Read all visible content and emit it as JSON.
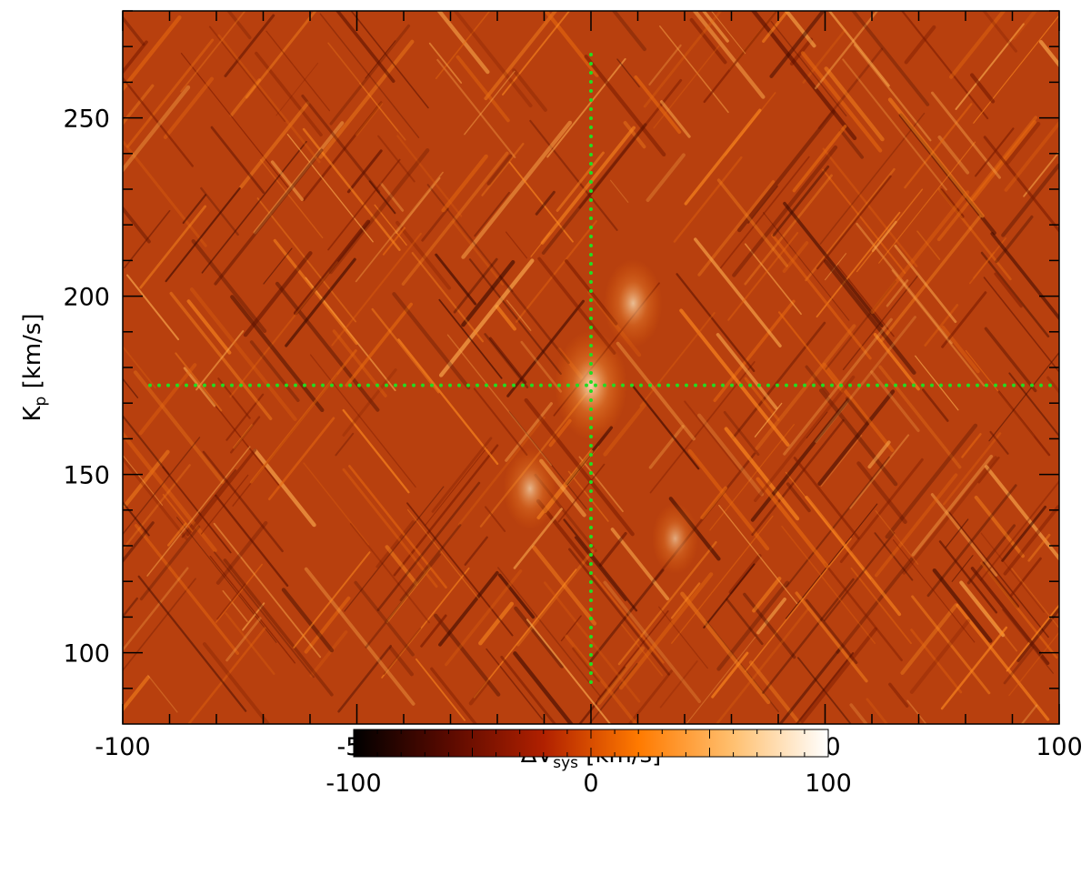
{
  "chart_data": {
    "type": "heatmap",
    "title": "",
    "xlabel": {
      "main": "ΔV",
      "sub": "sys",
      "unit": " [km/s]"
    },
    "ylabel": {
      "main": "K",
      "sub": "p",
      "unit": " [km/s]"
    },
    "xlim": [
      -100,
      100
    ],
    "ylim": [
      80,
      280
    ],
    "x_ticks": [
      {
        "value": -100,
        "label": "-100"
      },
      {
        "value": -50,
        "label": "-50"
      },
      {
        "value": 0,
        "label": "0"
      },
      {
        "value": 50,
        "label": "50"
      },
      {
        "value": 100,
        "label": "100"
      }
    ],
    "y_ticks": [
      {
        "value": 100,
        "label": "100"
      },
      {
        "value": 150,
        "label": "150"
      },
      {
        "value": 200,
        "label": "200"
      },
      {
        "value": 250,
        "label": "250"
      }
    ],
    "guide_lines": [
      {
        "axis": "x",
        "value": 0,
        "color": "#22dd22",
        "style": "dotted"
      },
      {
        "axis": "y",
        "value": 175,
        "color": "#22dd22",
        "style": "dotted"
      }
    ],
    "peak": {
      "x": 0,
      "y": 175
    },
    "bright_regions": [
      {
        "x": 0,
        "y": 175,
        "strength": 1.0
      },
      {
        "x": 9,
        "y": 198,
        "strength": 0.7
      },
      {
        "x": -13,
        "y": 146,
        "strength": 0.6
      },
      {
        "x": 18,
        "y": 132,
        "strength": 0.45
      }
    ],
    "value_range": [
      -100,
      100
    ],
    "colormap": "afmhot",
    "colorbar": {
      "min": -100,
      "max": 100,
      "ticks": [
        {
          "value": -100,
          "label": "-100"
        },
        {
          "value": 0,
          "label": "0"
        },
        {
          "value": 100,
          "label": "100"
        }
      ],
      "stops": [
        "#000000",
        "#5a0a00",
        "#b02000",
        "#ff7a00",
        "#ffc070",
        "#ffffff"
      ]
    }
  }
}
